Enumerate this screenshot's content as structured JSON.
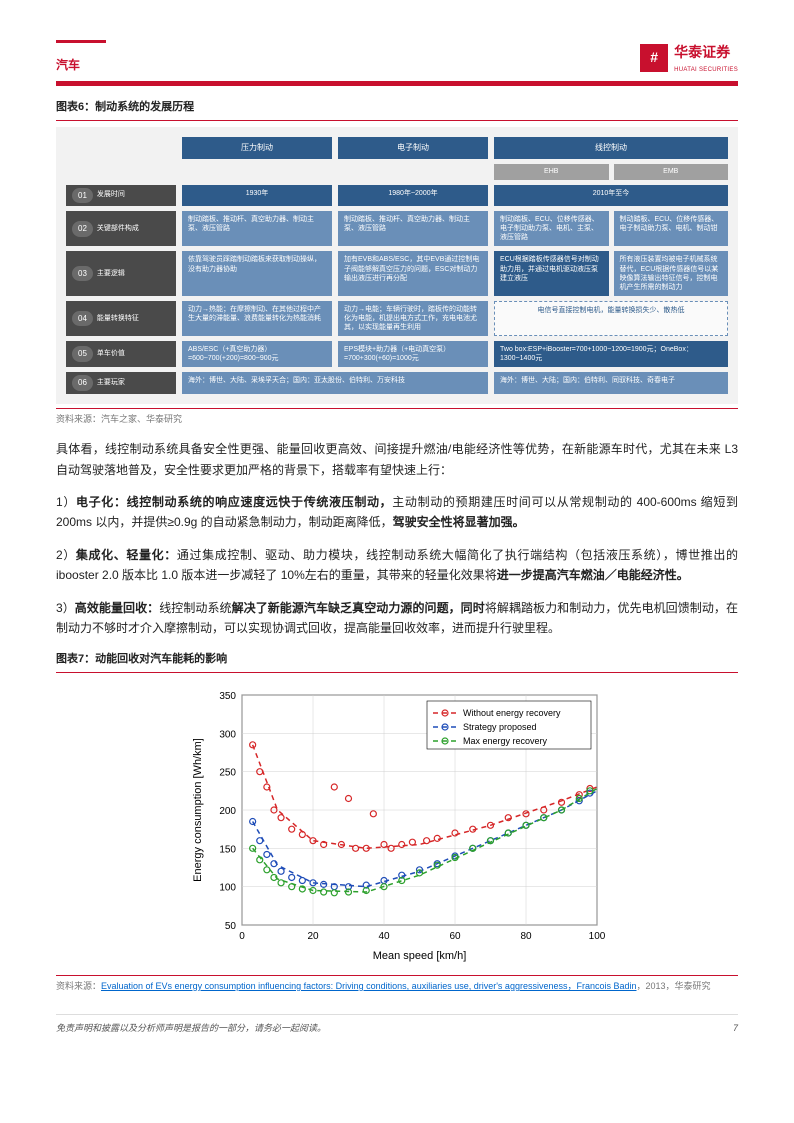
{
  "header": {
    "category": "汽车",
    "logo_square": "#",
    "logo_cn": "华泰证券",
    "logo_en": "HUATAI SECURITIES"
  },
  "fig6": {
    "title": "图表6：制动系统的发展历程",
    "col_headers": [
      "压力制动",
      "电子制动",
      "线控制动"
    ],
    "sub_headers": [
      "EHB",
      "EMB"
    ],
    "rows": [
      {
        "n": "01",
        "label": "发展时间",
        "c1": "1930年",
        "c2": "1980年~2000年",
        "c34": "2010年至今"
      },
      {
        "n": "02",
        "label": "关键部件构成",
        "c1": "制动踏板、推动杆、真空助力器、制动主泵、液压管路",
        "c2": "制动踏板、推动杆、真空助力器、制动主泵、液压管路",
        "c3": "制动踏板、ECU、位移传感器、电子制动助力泵、电机、主泵、液压管路",
        "c4": "制动踏板、ECU、位移传感器、电子制动助力泵、电机、制动钳"
      },
      {
        "n": "03",
        "label": "主要逻辑",
        "c1": "依靠驾驶员踩踏制动踏板来获取制动操纵，没有助力器协助",
        "c2": "加有EVB和ABS/ESC，其中EVB通过控制电子阀能够解真空压力的问题，ESC对制动力输出液压进行再分配",
        "c3": "ECU根据踏板传感器信号对制动助力用，并通过电机驱动液压泵建立液压",
        "c4": "所有液压装置均被电子机械系统替代，ECU根据传感器信号以某映像算法输出特征信号，控制电机产生所需的制动力"
      },
      {
        "n": "04",
        "label": "能量转换特征",
        "c1": "动力→热能；在摩擦制动、在其他过程中产生大量的滞能量、浪费能量转化为热能消耗",
        "c2": "动力→电能；车辆行驶时，踏板传的动能转化为电能，机提出电方式工作，充电电池尤其，以实现能量再生利用",
        "c34": "电信号直接控制电机，能量转换损失少、散热低"
      },
      {
        "n": "05",
        "label": "单车价值",
        "c1": "ABS/ESC（+真空助力器）=600~700(+200)=800~900元",
        "c2": "EPS模块+助力器（+电动真空泵）=700+300(+60)=1000元",
        "c34": "Two box:ESP+iBooster=700+1000~1200=1900元；OneBox：1300~1400元"
      },
      {
        "n": "06",
        "label": "主要玩家",
        "c1": "海外：博世、大陆、采埃孚天合；国内：亚太股份、伯特利、万安科技",
        "c2": "",
        "c34": "海外：博世、大陆；国内：伯特利、同驭科技、奇春电子"
      }
    ],
    "source": "资料来源：汽车之家、华泰研究"
  },
  "body": {
    "p0": "具体看，线控制动系统具备安全性更强、能量回收更高效、间接提升燃油/电能经济性等优势，在新能源车时代，尤其在未来 L3 自动驾驶落地普及，安全性要求更加严格的背景下，搭载率有望快速上行：",
    "p1_pre": "1）",
    "p1_b1": "电子化：线控制动系统的响应速度远快于传统液压制动，",
    "p1_mid": "主动制动的预期建压时间可以从常规制动的 400-600ms 缩短到 200ms 以内，并提供≥0.9g 的自动紧急制动力，制动距离降低，",
    "p1_b2": "驾驶安全性将显著加强。",
    "p2_pre": "2）",
    "p2_b1": "集成化、轻量化：",
    "p2_mid": "通过集成控制、驱动、助力模块，线控制动系统大幅简化了执行端结构（包括液压系统），博世推出的 ibooster 2.0 版本比 1.0 版本进一步减轻了 10%左右的重量，其带来的轻量化效果将",
    "p2_b2": "进一步提高汽车燃油／电能经济性。",
    "p3_pre": "3）",
    "p3_b1": "高效能量回收：",
    "p3_mid1": "线控制动系统",
    "p3_b2": "解决了新能源汽车缺乏真空动力源的问题，同时",
    "p3_mid2": "将解耦踏板力和制动力，优先电机回馈制动，在制动力不够时才介入摩擦制动，可以实现协调式回收，提高能量回收效率，进而提升行驶里程。"
  },
  "fig7": {
    "title": "图表7：动能回收对汽车能耗的影响",
    "source_pre": "资料来源：",
    "source_link": "Evaluation of EVs energy consumption influencing factors: Driving conditions, auxiliaries use, driver's aggressiveness，Francois Badin",
    "source_post": "，2013，华泰研究",
    "chart": {
      "type": "scatter+line",
      "xlim": [
        0,
        100
      ],
      "ylim": [
        50,
        350
      ],
      "xticks": [
        0,
        20,
        40,
        60,
        80,
        100
      ],
      "yticks": [
        50,
        100,
        150,
        200,
        250,
        300,
        350
      ],
      "xlabel": "Mean speed [km/h]",
      "ylabel": "Energy consumption [Wh/km]",
      "grid_color": "#d0d0d0",
      "bg": "#ffffff",
      "axis_fontsize": 11,
      "tick_fontsize": 10,
      "series": [
        {
          "name": "Without energy recovery",
          "color": "#d62728",
          "marker": "o",
          "dash": "5,4",
          "line_width": 1.5,
          "points": [
            [
              3,
              285
            ],
            [
              5,
              250
            ],
            [
              7,
              230
            ],
            [
              9,
              200
            ],
            [
              11,
              190
            ],
            [
              14,
              175
            ],
            [
              17,
              168
            ],
            [
              20,
              160
            ],
            [
              23,
              155
            ],
            [
              26,
              230
            ],
            [
              28,
              155
            ],
            [
              30,
              215
            ],
            [
              32,
              150
            ],
            [
              35,
              150
            ],
            [
              37,
              195
            ],
            [
              40,
              155
            ],
            [
              42,
              150
            ],
            [
              45,
              155
            ],
            [
              48,
              158
            ],
            [
              52,
              160
            ],
            [
              55,
              163
            ],
            [
              60,
              170
            ],
            [
              65,
              175
            ],
            [
              70,
              180
            ],
            [
              75,
              190
            ],
            [
              80,
              195
            ],
            [
              85,
              200
            ],
            [
              90,
              210
            ],
            [
              95,
              220
            ],
            [
              98,
              228
            ]
          ],
          "curve": [
            [
              3,
              285
            ],
            [
              10,
              200
            ],
            [
              20,
              160
            ],
            [
              35,
              150
            ],
            [
              50,
              155
            ],
            [
              70,
              180
            ],
            [
              90,
              212
            ],
            [
              100,
              230
            ]
          ]
        },
        {
          "name": "Strategy proposed",
          "color": "#1f4db8",
          "marker": "o",
          "dash": "5,4",
          "line_width": 1.5,
          "points": [
            [
              3,
              185
            ],
            [
              5,
              160
            ],
            [
              7,
              142
            ],
            [
              9,
              130
            ],
            [
              11,
              120
            ],
            [
              14,
              112
            ],
            [
              17,
              108
            ],
            [
              20,
              105
            ],
            [
              23,
              103
            ],
            [
              26,
              100
            ],
            [
              30,
              100
            ],
            [
              35,
              102
            ],
            [
              40,
              108
            ],
            [
              45,
              115
            ],
            [
              50,
              122
            ],
            [
              55,
              130
            ],
            [
              60,
              140
            ],
            [
              65,
              150
            ],
            [
              70,
              160
            ],
            [
              75,
              170
            ],
            [
              80,
              180
            ],
            [
              85,
              190
            ],
            [
              90,
              200
            ],
            [
              95,
              212
            ],
            [
              98,
              222
            ]
          ],
          "curve": [
            [
              3,
              185
            ],
            [
              10,
              128
            ],
            [
              20,
              105
            ],
            [
              35,
              100
            ],
            [
              50,
              120
            ],
            [
              70,
              160
            ],
            [
              90,
              200
            ],
            [
              100,
              225
            ]
          ]
        },
        {
          "name": "Max energy recovery",
          "color": "#2ca02c",
          "marker": "o",
          "dash": "5,4",
          "line_width": 1.5,
          "points": [
            [
              3,
              150
            ],
            [
              5,
              135
            ],
            [
              7,
              122
            ],
            [
              9,
              112
            ],
            [
              11,
              105
            ],
            [
              14,
              100
            ],
            [
              17,
              97
            ],
            [
              20,
              95
            ],
            [
              23,
              93
            ],
            [
              26,
              92
            ],
            [
              30,
              93
            ],
            [
              35,
              95
            ],
            [
              40,
              100
            ],
            [
              45,
              108
            ],
            [
              50,
              118
            ],
            [
              55,
              128
            ],
            [
              60,
              138
            ],
            [
              65,
              150
            ],
            [
              70,
              160
            ],
            [
              75,
              170
            ],
            [
              80,
              180
            ],
            [
              85,
              190
            ],
            [
              90,
              200
            ],
            [
              95,
              215
            ],
            [
              98,
              225
            ]
          ],
          "curve": [
            [
              3,
              150
            ],
            [
              10,
              110
            ],
            [
              20,
              95
            ],
            [
              35,
              93
            ],
            [
              50,
              115
            ],
            [
              70,
              158
            ],
            [
              90,
              200
            ],
            [
              100,
              228
            ]
          ]
        }
      ]
    }
  },
  "footer": {
    "disclaimer": "免责声明和披露以及分析师声明是报告的一部分，请务必一起阅读。",
    "page": "7"
  }
}
